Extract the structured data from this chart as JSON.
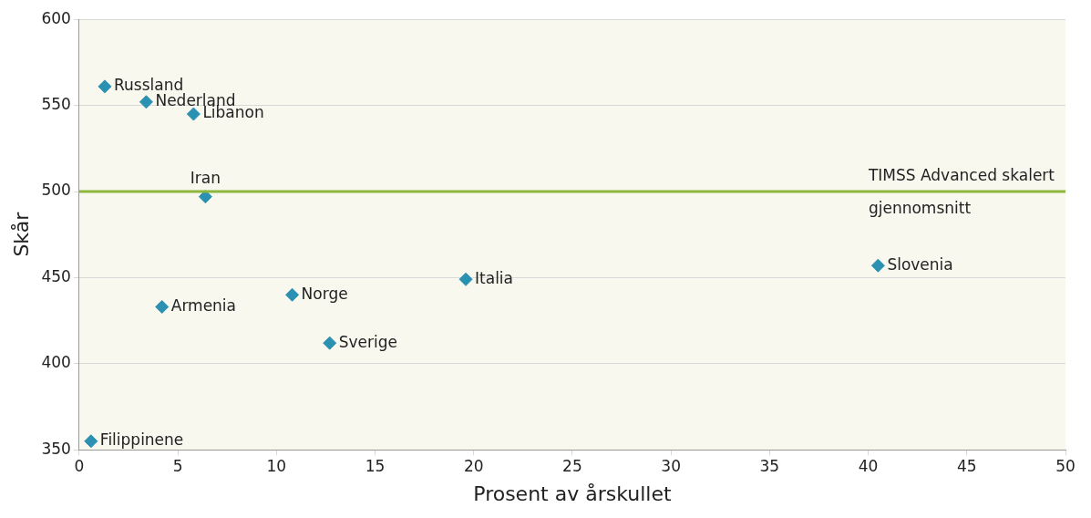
{
  "chart_data": {
    "type": "scatter",
    "xlabel": "Prosent av årskullet",
    "ylabel": "Skår",
    "x": [
      1.3,
      3.4,
      5.8,
      6.4,
      4.2,
      10.8,
      12.7,
      19.6,
      40.5,
      0.6
    ],
    "series": [
      {
        "color": "#2a91b3",
        "values": [
          561,
          552,
          545,
          497,
          433,
          440,
          412,
          449,
          457,
          355
        ]
      }
    ],
    "xlim": [
      0,
      50
    ],
    "xticks": [
      0,
      5,
      10,
      15,
      20,
      25,
      30,
      35,
      40,
      45,
      50
    ],
    "ylim": [
      350,
      600
    ],
    "yticks": [
      350,
      400,
      450,
      500,
      550,
      600
    ],
    "grid": "y",
    "marker": "diamond",
    "legend": false,
    "ref_lines": [
      {
        "axis": "y",
        "value": 500,
        "label": "TIMSS Advanced skalert gjennomsnitt",
        "color": "#8cb63c"
      }
    ],
    "annotations": [
      {
        "text": "Russland",
        "x": 1.3,
        "y": 561
      },
      {
        "text": "Nederland",
        "x": 3.4,
        "y": 552
      },
      {
        "text": "Libanon",
        "x": 5.8,
        "y": 545
      },
      {
        "text": "Iran",
        "x": 6.4,
        "y": 497
      },
      {
        "text": "Armenia",
        "x": 4.2,
        "y": 433
      },
      {
        "text": "Norge",
        "x": 10.8,
        "y": 440
      },
      {
        "text": "Sverige",
        "x": 12.7,
        "y": 412
      },
      {
        "text": "Italia",
        "x": 19.6,
        "y": 449
      },
      {
        "text": "Slovenia",
        "x": 40.5,
        "y": 457
      },
      {
        "text": "Filippinene",
        "x": 0.6,
        "y": 355
      }
    ]
  }
}
